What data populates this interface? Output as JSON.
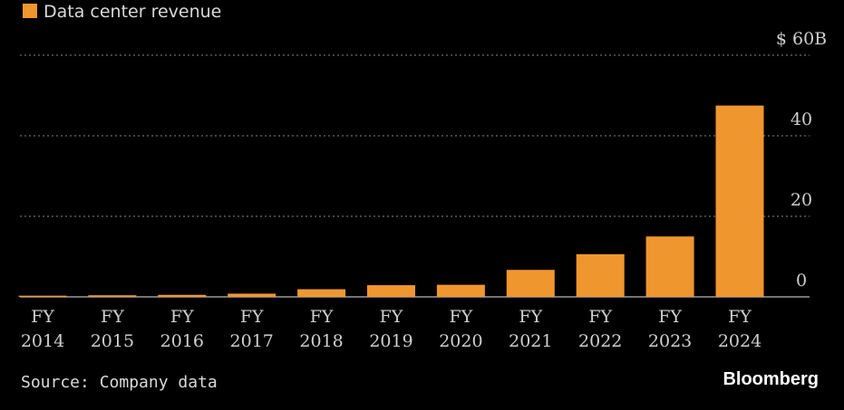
{
  "legend": {
    "label": "Data center revenue",
    "swatch_color": "#f0962e"
  },
  "source": "Source: Company data",
  "brand": "Bloomberg",
  "chart_data": {
    "type": "bar",
    "categories": [
      [
        "FY",
        "2014"
      ],
      [
        "FY",
        "2015"
      ],
      [
        "FY",
        "2016"
      ],
      [
        "FY",
        "2017"
      ],
      [
        "FY",
        "2018"
      ],
      [
        "FY",
        "2019"
      ],
      [
        "FY",
        "2020"
      ],
      [
        "FY",
        "2021"
      ],
      [
        "FY",
        "2022"
      ],
      [
        "FY",
        "2023"
      ],
      [
        "FY",
        "2024"
      ]
    ],
    "series": [
      {
        "name": "Data center revenue",
        "color": "#f0962e",
        "values": [
          0.3,
          0.4,
          0.5,
          0.8,
          1.9,
          2.9,
          3.0,
          6.7,
          10.6,
          15.0,
          47.5
        ]
      }
    ],
    "ylim": [
      0,
      60
    ],
    "yticks": [
      {
        "value": 60,
        "label": "$ 60B"
      },
      {
        "value": 40,
        "label": "40"
      },
      {
        "value": 20,
        "label": "20"
      },
      {
        "value": 0,
        "label": "0"
      }
    ],
    "grid": true,
    "legend_position": "top-left"
  }
}
